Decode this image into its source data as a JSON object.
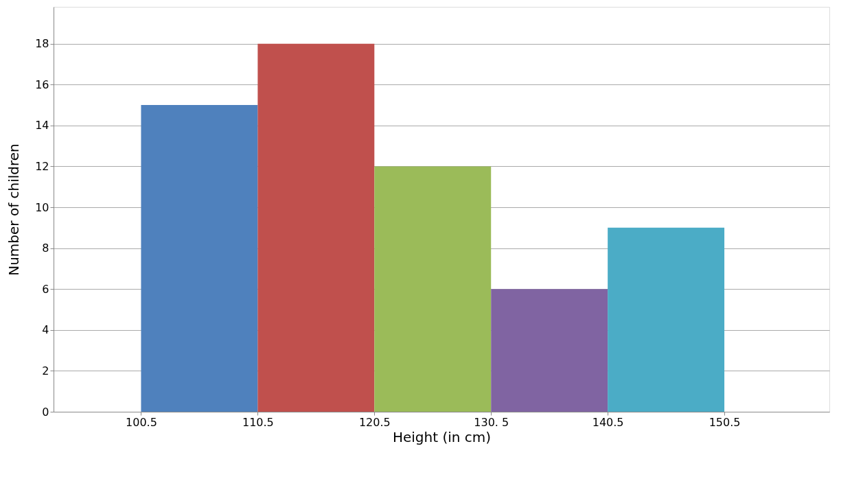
{
  "chart_data": {
    "type": "histogram",
    "xlabel": "Height (in cm)",
    "ylabel": "Number of children",
    "bins": [
      100.5,
      110.5,
      120.5,
      130.5,
      140.5,
      150.5
    ],
    "values": [
      15,
      18,
      12,
      6,
      9
    ],
    "colors": [
      "#4f81bd",
      "#c0504d",
      "#9bbb59",
      "#8064a2",
      "#4bacc6"
    ],
    "xlim": [
      93,
      159.5
    ],
    "ylim": [
      0,
      19.8
    ],
    "xticks": [
      100.5,
      110.5,
      120.5,
      {
        "value": 130.5,
        "label": "130. 5"
      },
      140.5,
      150.5
    ],
    "yticks": [
      0,
      2,
      4,
      6,
      8,
      10,
      12,
      14,
      16,
      18
    ],
    "grid": "y"
  }
}
